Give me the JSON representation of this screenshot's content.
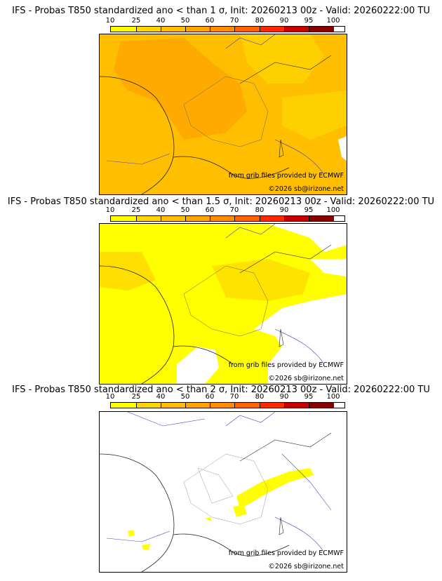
{
  "colorbar": {
    "ticks": [
      "10",
      "25",
      "40",
      "50",
      "60",
      "70",
      "80",
      "90",
      "95",
      "100"
    ],
    "colors": [
      "#ffff00",
      "#ffd700",
      "#ffbe00",
      "#ffa500",
      "#ff8c00",
      "#ff6400",
      "#ff2800",
      "#c80000",
      "#8b0000"
    ]
  },
  "panels": [
    {
      "title": "IFS - Probas T850  standardized ano < than 1 σ, Init: 20260213 00z - Valid: 20260222:00 TU",
      "credit1": "from grib files provided by ECMWF",
      "credit2": "©2026 sb@irizone.net"
    },
    {
      "title": "IFS - Probas T850  standardized ano < than 1.5 σ, Init: 20260213 00z - Valid: 20260222:00 TU",
      "credit1": "from grib files provided by ECMWF",
      "credit2": "©2026 sb@irizone.net"
    },
    {
      "title": "IFS - Probas T850  standardized ano < than 2 σ, Init: 20260213 00z - Valid: 20260222:00 TU",
      "credit1": "from grib files provided by ECMWF",
      "credit2": "©2026 sb@irizone.net"
    }
  ]
}
